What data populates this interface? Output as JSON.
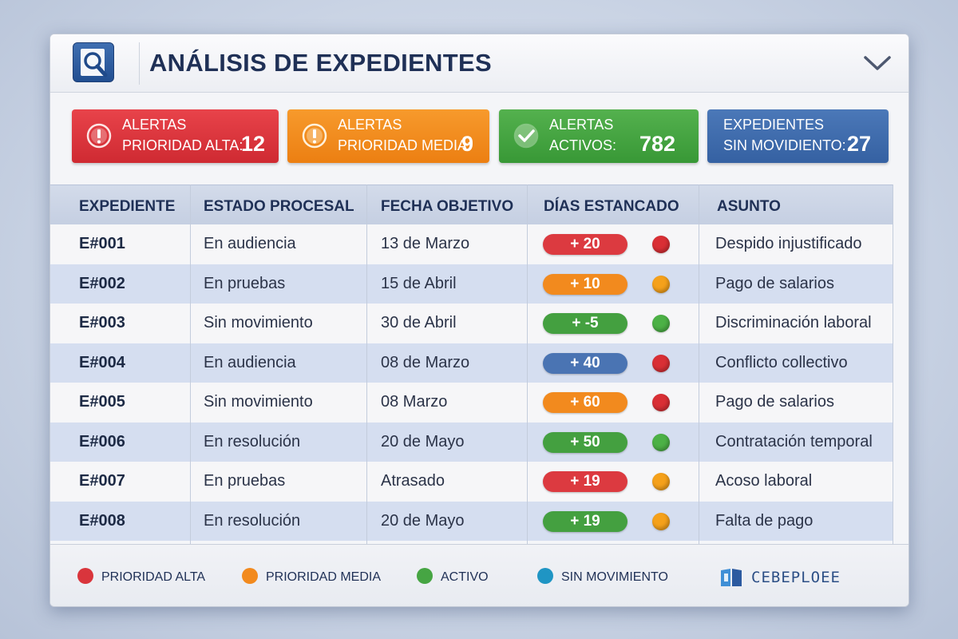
{
  "window": {
    "title": "ANÁLISIS DE EXPEDIENTES",
    "app_icon": "search-folder-icon",
    "collapse_icon": "chevron-down-icon"
  },
  "cards": [
    {
      "line1": "Alertas",
      "line2": "Prioridad Alta:",
      "value": "12",
      "color": "#d9353c",
      "icon": "alert-icon"
    },
    {
      "line1": "Alertas",
      "line2": "Prioridad Media:",
      "value": "9",
      "color": "#f28a1e",
      "icon": "alert-icon"
    },
    {
      "line1": "Alertas",
      "line2": "Activos:",
      "value": "782",
      "color": "#46a543",
      "icon": "check-icon"
    },
    {
      "line1": "Expedientes",
      "line2": "Sin Movidiento:",
      "value": "27",
      "color": "#3f6cad",
      "icon": "none"
    }
  ],
  "table": {
    "headers": [
      "EXPEDIENTE",
      "ESTADO PROCESAL",
      "FECHA OBJETIVO",
      "DÍAS ESTANCADO",
      "ASUNTO"
    ],
    "rows": [
      {
        "id": "E#001",
        "estado": "En audiencia",
        "fecha": "13 de Marzo",
        "dias": "+ 20",
        "pill_color": "#dc3a40",
        "dot_color": "#d92f35",
        "asunto": "Despido injustificado"
      },
      {
        "id": "E#002",
        "estado": "En pruebas",
        "fecha": "15 de Abril",
        "dias": "+ 10",
        "pill_color": "#f28a1e",
        "dot_color": "#f5a11b",
        "asunto": "Pago de salarios"
      },
      {
        "id": "E#003",
        "estado": "Sin movimiento",
        "fecha": "30 de Abril",
        "dias": "+ -5",
        "pill_color": "#44a040",
        "dot_color": "#4cb146",
        "asunto": "Discriminación laboral"
      },
      {
        "id": "E#004",
        "estado": "En audiencia",
        "fecha": "08 de Marzo",
        "dias": "+ 40",
        "pill_color": "#4a74b3",
        "dot_color": "#d92f35",
        "asunto": "Conflicto collectivo"
      },
      {
        "id": "E#005",
        "estado": "Sin movimiento",
        "fecha": "08 Marzo",
        "dias": "+ 60",
        "pill_color": "#f28a1e",
        "dot_color": "#d92f35",
        "asunto": "Pago de salarios"
      },
      {
        "id": "E#006",
        "estado": "En resolución",
        "fecha": "20 de Mayo",
        "dias": "+ 50",
        "pill_color": "#44a040",
        "dot_color": "#4cb146",
        "asunto": "Contratación temporal"
      },
      {
        "id": "E#007",
        "estado": "En pruebas",
        "fecha": "Atrasado",
        "dias": "+ 19",
        "pill_color": "#dc3a40",
        "dot_color": "#f5a11b",
        "asunto": "Acoso laboral"
      },
      {
        "id": "E#008",
        "estado": "En resolución",
        "fecha": "20 de Mayo",
        "dias": "+ 19",
        "pill_color": "#44a040",
        "dot_color": "#f5a11b",
        "asunto": "Falta de pago"
      }
    ]
  },
  "legend": [
    {
      "label": "PRIORIDAD ALTA",
      "color": "#d9353c"
    },
    {
      "label": "PRIORIDAD MEDIA",
      "color": "#f28a1e"
    },
    {
      "label": "ACTIVO",
      "color": "#46a543"
    },
    {
      "label": "SIN MOVIMIENTO",
      "color": "#1f95c4"
    }
  ],
  "brand": {
    "text": "CEBEPLOEE",
    "icon": "book-icon"
  }
}
